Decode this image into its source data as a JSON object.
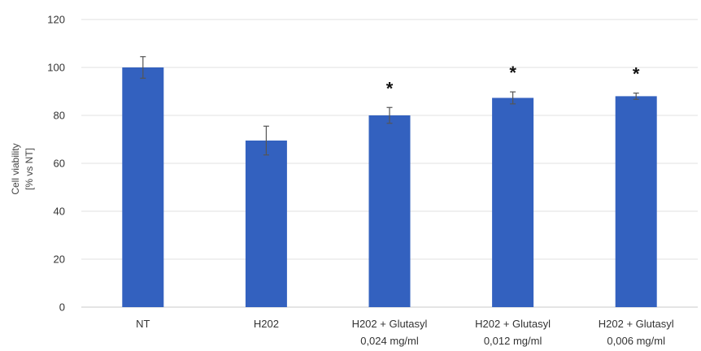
{
  "chart_data": {
    "type": "bar",
    "title": "",
    "ylabel_lines": [
      "Cell viability",
      "[% vs NT]"
    ],
    "xlabel": "",
    "ylim": [
      0,
      120
    ],
    "yticks": [
      0,
      20,
      40,
      60,
      80,
      100,
      120
    ],
    "ytick_labels": [
      "0",
      "20",
      "40",
      "60",
      "80",
      "100",
      "120"
    ],
    "grid": true,
    "legend": "none",
    "bar_color": "#3361bf",
    "categories": [
      [
        "NT"
      ],
      [
        "H202"
      ],
      [
        "H202 + Glutasyl",
        "0,024 mg/ml"
      ],
      [
        "H202 + Glutasyl",
        "0,012 mg/ml"
      ],
      [
        "H202 + Glutasyl",
        "0,006 mg/ml"
      ]
    ],
    "values": [
      100,
      69.5,
      80,
      87.3,
      88
    ],
    "errors": [
      4.5,
      6,
      3.3,
      2.5,
      1.3
    ],
    "significance": [
      "",
      "",
      "*",
      "*",
      "*"
    ]
  }
}
